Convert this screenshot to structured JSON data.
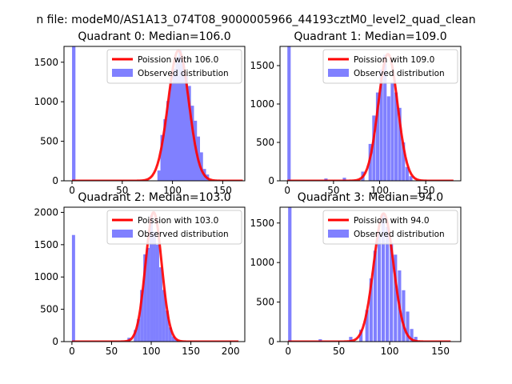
{
  "suptitle": "n file: modeM0/AS1A13_074T08_9000005966_44193cztM0_level2_quad_clean",
  "colors": {
    "fit": "#ff0000",
    "hist": "#8080ff",
    "axis": "#000000"
  },
  "chart_data": [
    {
      "type": "bar",
      "title": "Quadrant 0: Median=106.0",
      "xlim": [
        -8,
        172
      ],
      "ylim": [
        0,
        1700
      ],
      "xticks": [
        0,
        50,
        100,
        150
      ],
      "yticks": [
        0,
        500,
        1000,
        1500
      ],
      "legend": [
        "Poission with 106.0",
        "Observed distribution"
      ],
      "legend_placement": "upper-right",
      "bin_width": 3.4,
      "hist": {
        "x": [
          0,
          85,
          88,
          91,
          94,
          97,
          100,
          103,
          106,
          109,
          112,
          115,
          118,
          121,
          124,
          127,
          130,
          133
        ],
        "y": [
          1700,
          130,
          580,
          780,
          1010,
          1230,
          1420,
          1560,
          1650,
          1500,
          1330,
          1200,
          950,
          760,
          560,
          360,
          150,
          80
        ]
      },
      "fit": {
        "mean": 106.0,
        "peak": 1650,
        "x_range": [
          0,
          170
        ]
      }
    },
    {
      "type": "bar",
      "title": "Quadrant 1: Median=109.0",
      "xlim": [
        -8,
        188
      ],
      "ylim": [
        0,
        1750
      ],
      "xticks": [
        0,
        50,
        100,
        150
      ],
      "yticks": [
        0,
        500,
        1000,
        1500
      ],
      "legend": [
        "Poission with 109.0",
        "Observed distribution"
      ],
      "legend_placement": "upper-right",
      "bin_width": 3.6,
      "hist": {
        "x": [
          0,
          40,
          60,
          80,
          88,
          92,
          96,
          100,
          104,
          108,
          112,
          116,
          120,
          124,
          128,
          132
        ],
        "y": [
          1750,
          30,
          40,
          120,
          480,
          850,
          1150,
          1450,
          1640,
          1100,
          1280,
          1150,
          950,
          500,
          180,
          60
        ]
      },
      "fit": {
        "mean": 109.0,
        "peak": 1650,
        "x_range": [
          0,
          180
        ]
      }
    },
    {
      "type": "bar",
      "title": "Quadrant 2: Median=103.0",
      "xlim": [
        -10,
        218
      ],
      "ylim": [
        0,
        2080
      ],
      "xticks": [
        0,
        50,
        100,
        150,
        200
      ],
      "yticks": [
        0,
        500,
        1000,
        1500,
        2000
      ],
      "legend": [
        "Poission with 103.0",
        "Observed distribution"
      ],
      "legend_placement": "upper-right",
      "bin_width": 4.0,
      "hist": {
        "x": [
          0,
          70,
          78,
          82,
          86,
          90,
          94,
          98,
          102,
          106,
          110,
          114,
          118,
          122,
          126,
          130
        ],
        "y": [
          1650,
          60,
          180,
          350,
          800,
          1350,
          1450,
          1950,
          1700,
          1500,
          1150,
          800,
          480,
          220,
          80,
          30
        ]
      },
      "fit": {
        "mean": 103.0,
        "peak": 2000,
        "x_range": [
          0,
          210
        ]
      }
    },
    {
      "type": "bar",
      "title": "Quadrant 3: Median=94.0",
      "xlim": [
        -8,
        170
      ],
      "ylim": [
        0,
        1700
      ],
      "xticks": [
        0,
        50,
        100,
        150
      ],
      "yticks": [
        0,
        500,
        1000,
        1500
      ],
      "legend": [
        "Poission with 94.0",
        "Observed distribution"
      ],
      "legend_placement": "upper-right",
      "bin_width": 3.3,
      "hist": {
        "x": [
          0,
          30,
          60,
          70,
          76,
          80,
          84,
          88,
          92,
          96,
          100,
          104,
          108,
          112,
          116,
          120,
          124
        ],
        "y": [
          1700,
          30,
          60,
          150,
          400,
          800,
          1150,
          1400,
          1620,
          1450,
          1250,
          1100,
          900,
          650,
          380,
          160,
          60
        ]
      },
      "fit": {
        "mean": 94.0,
        "peak": 1620,
        "x_range": [
          0,
          160
        ]
      }
    }
  ]
}
